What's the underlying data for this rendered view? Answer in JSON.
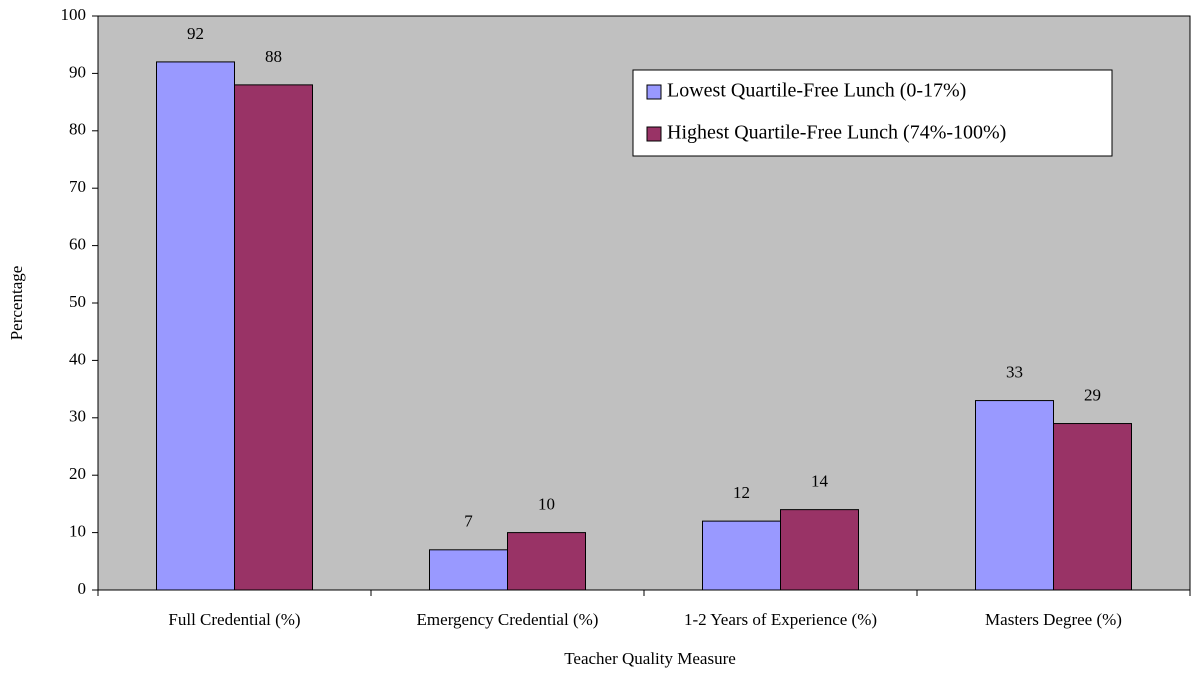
{
  "chart_data": {
    "type": "bar",
    "categories": [
      "Full Credential (%)",
      "Emergency Credential (%)",
      "1-2 Years of Experience (%)",
      "Masters Degree (%)"
    ],
    "series": [
      {
        "name": "Lowest Quartile-Free Lunch (0-17%)",
        "color": "#9999ff",
        "values": [
          92,
          7,
          12,
          33
        ]
      },
      {
        "name": "Highest Quartile-Free Lunch (74%-100%)",
        "color": "#993366",
        "values": [
          88,
          10,
          14,
          29
        ]
      }
    ],
    "xlabel": "Teacher Quality Measure",
    "ylabel": "Percentage",
    "ylim": [
      0,
      100
    ],
    "yticks": [
      0,
      10,
      20,
      30,
      40,
      50,
      60,
      70,
      80,
      90,
      100
    ],
    "legend": "upper right",
    "plot_background": "#c0c0c0"
  }
}
